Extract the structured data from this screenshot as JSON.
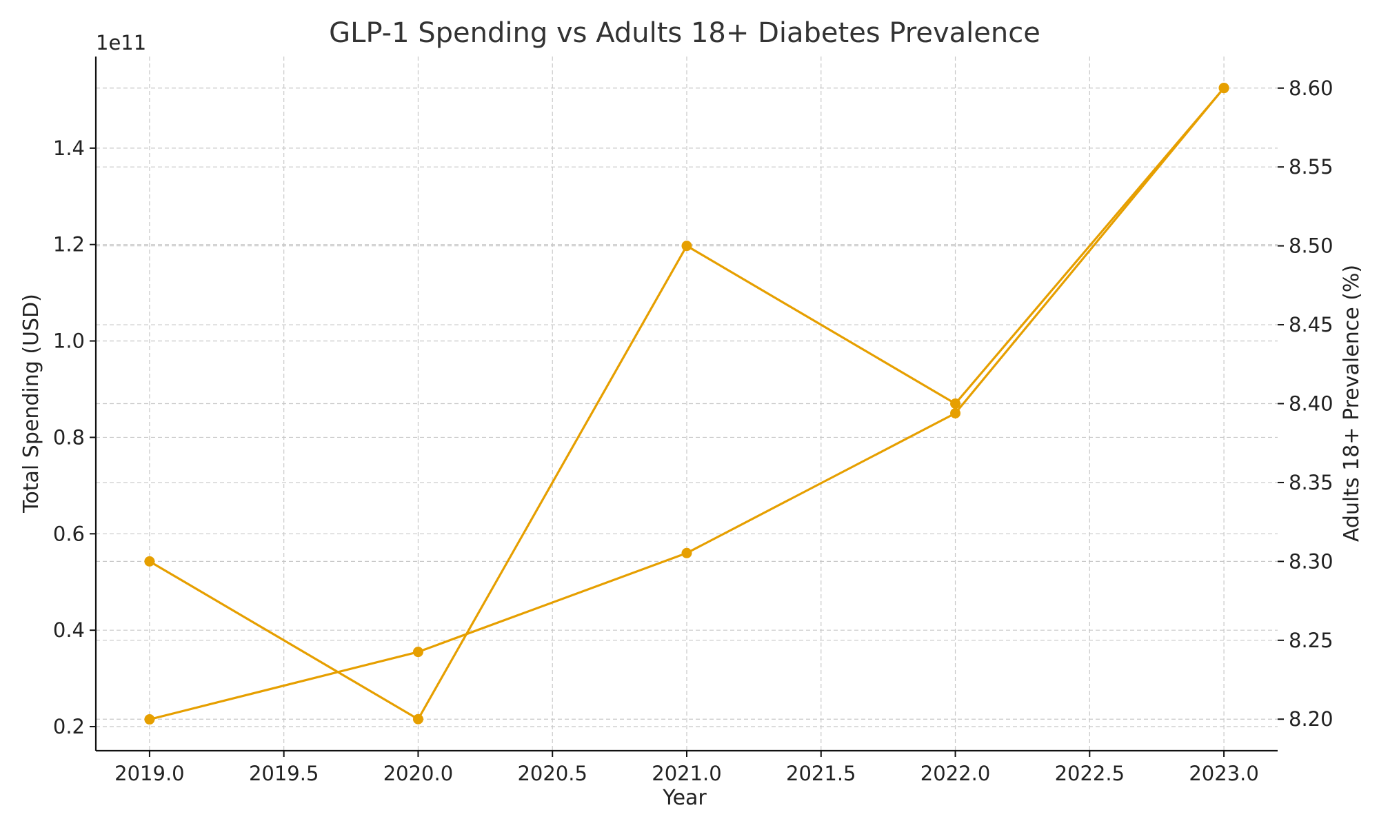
{
  "chart_data": {
    "type": "line",
    "title": "GLP-1 Spending vs Adults 18+ Diabetes Prevalence",
    "xlabel": "Year",
    "ylabel_left": "Total Spending (USD)",
    "ylabel_right": "Adults 18+ Prevalence (%)",
    "left_axis_offset_label": "1e11",
    "x_ticks": [
      "2019.0",
      "2019.5",
      "2020.0",
      "2020.5",
      "2021.0",
      "2021.5",
      "2022.0",
      "2022.5",
      "2023.0"
    ],
    "x_tick_values": [
      2019.0,
      2019.5,
      2020.0,
      2020.5,
      2021.0,
      2021.5,
      2022.0,
      2022.5,
      2023.0
    ],
    "y_left_ticks": [
      "0.2",
      "0.4",
      "0.6",
      "0.8",
      "1.0",
      "1.2",
      "1.4"
    ],
    "y_left_tick_values": [
      0.2,
      0.4,
      0.6,
      0.8,
      1.0,
      1.2,
      1.4
    ],
    "y_right_ticks": [
      "8.20",
      "8.25",
      "8.30",
      "8.35",
      "8.40",
      "8.45",
      "8.50",
      "8.55",
      "8.60"
    ],
    "y_right_tick_values": [
      8.2,
      8.25,
      8.3,
      8.35,
      8.4,
      8.45,
      8.5,
      8.55,
      8.6
    ],
    "xlim": [
      2018.8,
      2023.2
    ],
    "ylim_left": [
      0.15,
      1.59
    ],
    "ylim_right": [
      8.18,
      8.62
    ],
    "grid": true,
    "series": [
      {
        "axis": "left",
        "color": "#E69F00",
        "x": [
          2019,
          2020,
          2021,
          2022,
          2023
        ],
        "values": [
          0.215,
          0.355,
          0.56,
          0.85,
          1.525
        ]
      },
      {
        "axis": "right",
        "color": "#E69F00",
        "x": [
          2019,
          2020,
          2021,
          2022,
          2023
        ],
        "values": [
          8.3,
          8.2,
          8.5,
          8.4,
          8.6
        ]
      }
    ]
  }
}
